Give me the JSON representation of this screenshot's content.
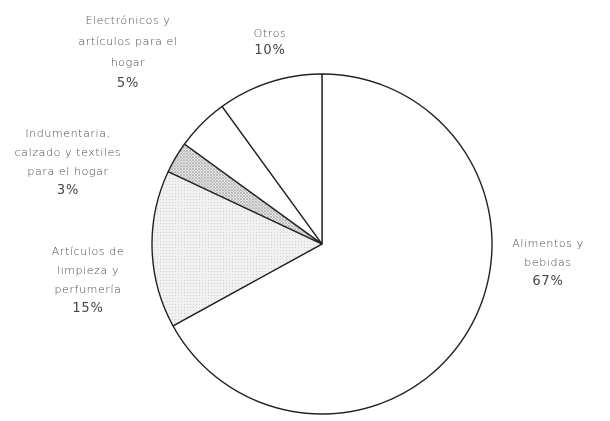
{
  "chart_data": {
    "type": "pie",
    "title": "",
    "start_angle_deg": 0,
    "direction": "clockwise",
    "slices": [
      {
        "key": "alimentos",
        "label_lines": [
          "Alimentos y",
          "bebidas"
        ],
        "percent_label": "67%",
        "value": 67,
        "fill": "#ffffff",
        "pattern": "none"
      },
      {
        "key": "limpieza",
        "label_lines": [
          "Artículos de",
          "limpieza y",
          "perfumería"
        ],
        "percent_label": "15%",
        "value": 15,
        "fill": "#ededed",
        "pattern": "fine-dots"
      },
      {
        "key": "indumentaria",
        "label_lines": [
          "Indumentaria,",
          "calzado y textiles",
          "para el hogar"
        ],
        "percent_label": "3%",
        "value": 3,
        "fill": "#d6d6d6",
        "pattern": "stipple"
      },
      {
        "key": "electronicos",
        "label_lines": [
          "Electrónicos y",
          "artículos para el",
          "hogar"
        ],
        "percent_label": "5%",
        "value": 5,
        "fill": "#ffffff",
        "pattern": "none"
      },
      {
        "key": "otros",
        "label_lines": [
          "Otros"
        ],
        "percent_label": "10%",
        "value": 10,
        "fill": "#ffffff",
        "pattern": "none"
      }
    ]
  }
}
